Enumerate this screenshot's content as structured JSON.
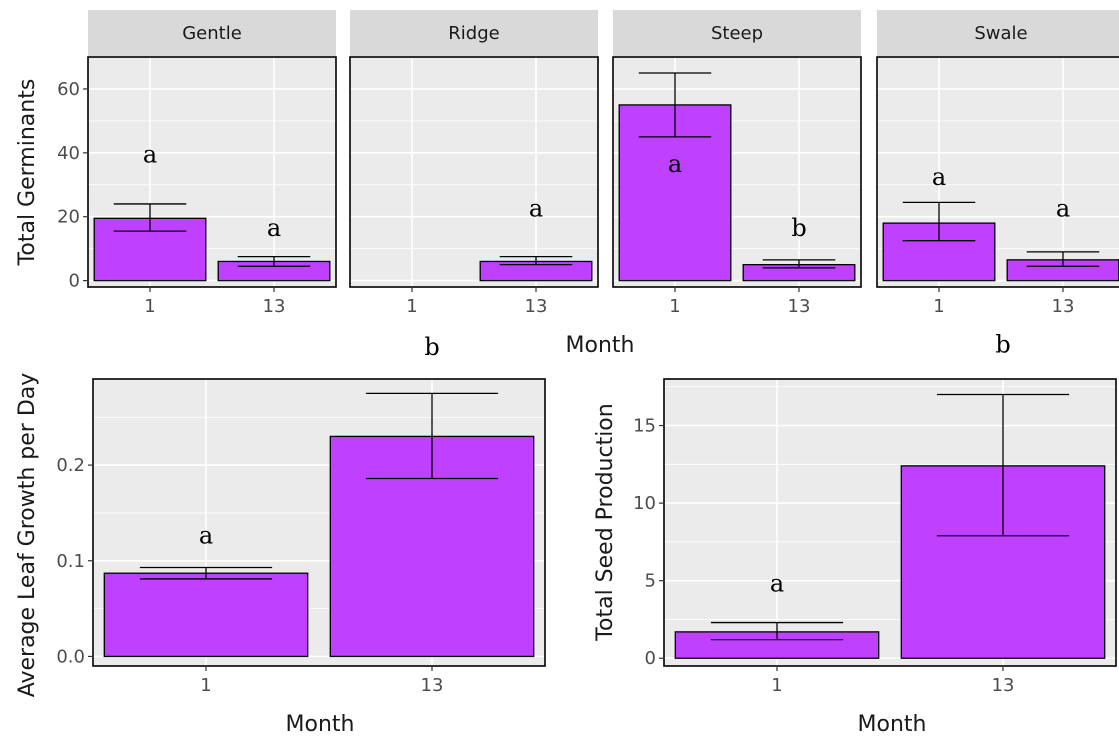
{
  "colors": {
    "bar_fill": "#c040ff",
    "bar_stroke": "#000000",
    "panel_bg": "#ebebeb",
    "grid": "#ffffff",
    "strip_bg": "#d9d9d9",
    "panel_border": "#000000"
  },
  "chart_data": [
    {
      "type": "bar",
      "facet": "top",
      "ylabel": "Total Germinants",
      "xlabel": "Month",
      "ylim": [
        -2,
        70
      ],
      "yticks": [
        0,
        20,
        40,
        60
      ],
      "categories": [
        "1",
        "13"
      ],
      "panels": [
        {
          "name": "Gentle",
          "values": [
            19.5,
            6
          ],
          "error_low": [
            15.5,
            4.5
          ],
          "error_high": [
            24,
            7.5
          ],
          "letters": [
            "a",
            "a"
          ],
          "letter_y": [
            37,
            14
          ]
        },
        {
          "name": "Ridge",
          "values": [
            null,
            6
          ],
          "error_low": [
            null,
            5
          ],
          "error_high": [
            null,
            7.5
          ],
          "letters": [
            "",
            "a"
          ],
          "letter_y": [
            null,
            20
          ]
        },
        {
          "name": "Steep",
          "values": [
            55,
            5
          ],
          "error_low": [
            45,
            4
          ],
          "error_high": [
            65,
            6.5
          ],
          "letters": [
            "a",
            "b"
          ],
          "letter_y": [
            34,
            14
          ]
        },
        {
          "name": "Swale",
          "values": [
            18,
            6.5
          ],
          "error_low": [
            12.5,
            4.5
          ],
          "error_high": [
            24.5,
            9
          ],
          "letters": [
            "a",
            "a"
          ],
          "letter_y": [
            30,
            20
          ]
        }
      ]
    },
    {
      "type": "bar",
      "facet": "bottom-left",
      "ylabel": "Average Leaf Growth per Day",
      "xlabel": "Month",
      "ylim": [
        -0.01,
        0.29
      ],
      "yticks": [
        0.0,
        0.1,
        0.2
      ],
      "ytick_labels": [
        "0.0",
        "0.1",
        "0.2"
      ],
      "categories": [
        "1",
        "13"
      ],
      "values": [
        0.087,
        0.23
      ],
      "error_low": [
        0.081,
        0.186
      ],
      "error_high": [
        0.093,
        0.275
      ],
      "letters": [
        "a",
        "b"
      ],
      "letter_y": [
        0.118,
        0.315
      ]
    },
    {
      "type": "bar",
      "facet": "bottom-right",
      "ylabel": "Total Seed Production",
      "xlabel": "Month",
      "ylim": [
        -0.5,
        18
      ],
      "yticks": [
        0,
        5,
        10,
        15
      ],
      "categories": [
        "1",
        "13"
      ],
      "values": [
        1.7,
        12.4
      ],
      "error_low": [
        1.2,
        7.9
      ],
      "error_high": [
        2.3,
        17
      ],
      "letters": [
        "a",
        "b"
      ],
      "letter_y": [
        4.3,
        19.7
      ]
    }
  ]
}
